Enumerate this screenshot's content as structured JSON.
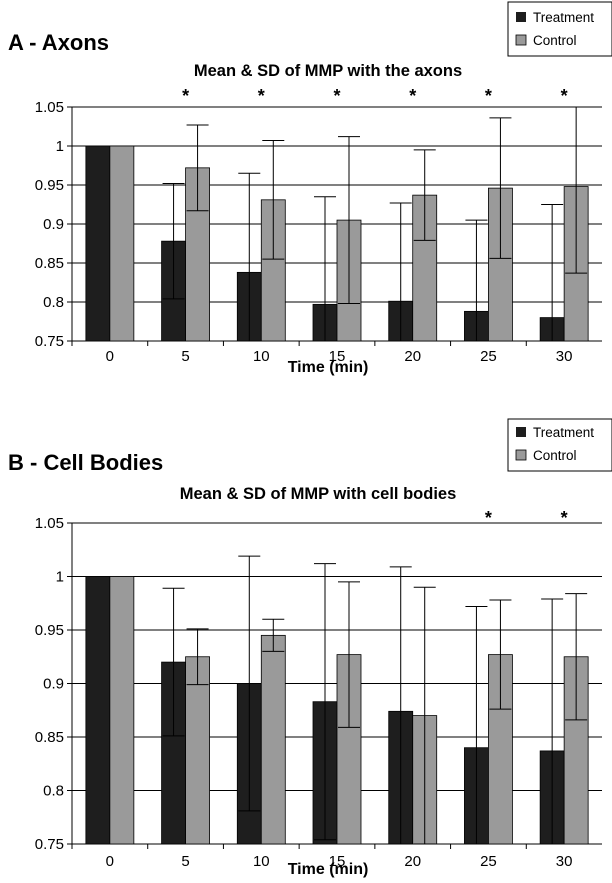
{
  "chart_data": [
    {
      "type": "bar",
      "panel_label": "A - Axons",
      "title": "Mean & SD of MMP with the axons",
      "xlabel": "Time (min)",
      "ylabel": "",
      "categories": [
        "0",
        "5",
        "10",
        "15",
        "20",
        "25",
        "30"
      ],
      "ylim": [
        0.75,
        1.05
      ],
      "yticks": [
        "0.75",
        "0.8",
        "0.85",
        "0.9",
        "0.95",
        "1",
        "1.05"
      ],
      "grid": true,
      "legend_position": "top-right",
      "series": [
        {
          "name": "Treatment",
          "color": "#1e1e1e",
          "values": [
            1.0,
            0.878,
            0.838,
            0.797,
            0.801,
            0.788,
            0.78
          ],
          "sd": [
            0.0,
            0.074,
            0.127,
            0.138,
            0.126,
            0.117,
            0.145
          ]
        },
        {
          "name": "Control",
          "color": "#9a9a9a",
          "values": [
            1.0,
            0.972,
            0.931,
            0.905,
            0.937,
            0.946,
            0.948
          ],
          "sd": [
            0.0,
            0.055,
            0.076,
            0.107,
            0.058,
            0.09,
            0.111
          ]
        }
      ],
      "significance": [
        "",
        "*",
        "*",
        "*",
        "*",
        "*",
        "*"
      ]
    },
    {
      "type": "bar",
      "panel_label": "B - Cell Bodies",
      "title": "Mean & SD of MMP with cell bodies",
      "xlabel": "Time (min)",
      "ylabel": "",
      "categories": [
        "0",
        "5",
        "10",
        "15",
        "20",
        "25",
        "30"
      ],
      "ylim": [
        0.75,
        1.05
      ],
      "yticks": [
        "0.75",
        "0.8",
        "0.85",
        "0.9",
        "0.95",
        "1",
        "1.05"
      ],
      "grid": true,
      "legend_position": "top-right",
      "series": [
        {
          "name": "Treatment",
          "color": "#1e1e1e",
          "values": [
            1.0,
            0.92,
            0.9,
            0.883,
            0.874,
            0.84,
            0.837
          ],
          "sd": [
            0.0,
            0.069,
            0.119,
            0.129,
            0.135,
            0.132,
            0.142
          ]
        },
        {
          "name": "Control",
          "color": "#9a9a9a",
          "values": [
            1.0,
            0.925,
            0.945,
            0.927,
            0.87,
            0.927,
            0.925
          ],
          "sd": [
            0.0,
            0.026,
            0.015,
            0.068,
            0.12,
            0.051,
            0.059
          ]
        }
      ],
      "significance": [
        "",
        "",
        "",
        "",
        "",
        "*",
        "*"
      ]
    }
  ]
}
